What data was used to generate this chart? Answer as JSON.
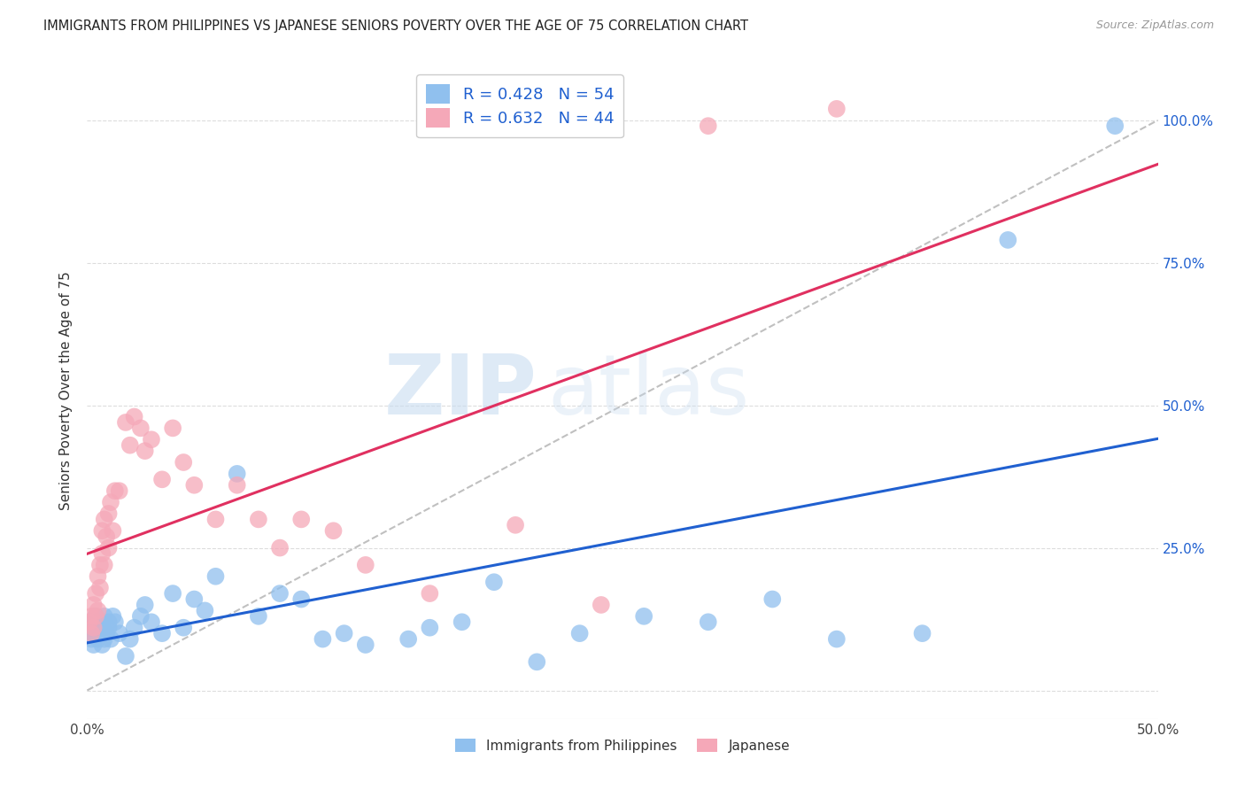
{
  "title": "IMMIGRANTS FROM PHILIPPINES VS JAPANESE SENIORS POVERTY OVER THE AGE OF 75 CORRELATION CHART",
  "source": "Source: ZipAtlas.com",
  "ylabel": "Seniors Poverty Over the Age of 75",
  "xlim": [
    0.0,
    0.5
  ],
  "ylim": [
    -0.05,
    1.1
  ],
  "xticks": [
    0.0,
    0.1,
    0.2,
    0.3,
    0.4,
    0.5
  ],
  "xticklabels": [
    "0.0%",
    "",
    "",
    "",
    "",
    "50.0%"
  ],
  "yticks_right": [
    0.25,
    0.5,
    0.75,
    1.0
  ],
  "yticklabels_right": [
    "25.0%",
    "50.0%",
    "75.0%",
    "100.0%"
  ],
  "blue_R": 0.428,
  "blue_N": 54,
  "pink_R": 0.632,
  "pink_N": 44,
  "blue_color": "#90C0EE",
  "pink_color": "#F5A8B8",
  "blue_line_color": "#2060D0",
  "pink_line_color": "#E03060",
  "dashed_line_color": "#C0C0C0",
  "blue_x": [
    0.001,
    0.002,
    0.002,
    0.003,
    0.003,
    0.004,
    0.004,
    0.005,
    0.005,
    0.006,
    0.006,
    0.007,
    0.007,
    0.008,
    0.008,
    0.009,
    0.01,
    0.01,
    0.011,
    0.012,
    0.013,
    0.015,
    0.018,
    0.02,
    0.022,
    0.025,
    0.027,
    0.03,
    0.035,
    0.04,
    0.045,
    0.05,
    0.055,
    0.06,
    0.07,
    0.08,
    0.09,
    0.1,
    0.11,
    0.12,
    0.13,
    0.15,
    0.16,
    0.175,
    0.19,
    0.21,
    0.23,
    0.26,
    0.29,
    0.32,
    0.35,
    0.39,
    0.43,
    0.48
  ],
  "blue_y": [
    0.1,
    0.09,
    0.11,
    0.08,
    0.12,
    0.1,
    0.13,
    0.09,
    0.11,
    0.1,
    0.12,
    0.08,
    0.11,
    0.09,
    0.13,
    0.1,
    0.12,
    0.11,
    0.09,
    0.13,
    0.12,
    0.1,
    0.06,
    0.09,
    0.11,
    0.13,
    0.15,
    0.12,
    0.1,
    0.17,
    0.11,
    0.16,
    0.14,
    0.2,
    0.38,
    0.13,
    0.17,
    0.16,
    0.09,
    0.1,
    0.08,
    0.09,
    0.11,
    0.12,
    0.19,
    0.05,
    0.1,
    0.13,
    0.12,
    0.16,
    0.09,
    0.1,
    0.79,
    0.99
  ],
  "pink_x": [
    0.001,
    0.002,
    0.002,
    0.003,
    0.003,
    0.004,
    0.004,
    0.005,
    0.005,
    0.006,
    0.006,
    0.007,
    0.007,
    0.008,
    0.008,
    0.009,
    0.01,
    0.01,
    0.011,
    0.012,
    0.013,
    0.015,
    0.018,
    0.02,
    0.022,
    0.025,
    0.027,
    0.03,
    0.035,
    0.04,
    0.045,
    0.05,
    0.06,
    0.07,
    0.08,
    0.09,
    0.1,
    0.115,
    0.13,
    0.16,
    0.2,
    0.24,
    0.29,
    0.35
  ],
  "pink_y": [
    0.12,
    0.1,
    0.13,
    0.11,
    0.15,
    0.13,
    0.17,
    0.14,
    0.2,
    0.18,
    0.22,
    0.24,
    0.28,
    0.22,
    0.3,
    0.27,
    0.31,
    0.25,
    0.33,
    0.28,
    0.35,
    0.35,
    0.47,
    0.43,
    0.48,
    0.46,
    0.42,
    0.44,
    0.37,
    0.46,
    0.4,
    0.36,
    0.3,
    0.36,
    0.3,
    0.25,
    0.3,
    0.28,
    0.22,
    0.17,
    0.29,
    0.15,
    0.99,
    1.02
  ],
  "legend_labels": [
    "Immigrants from Philippines",
    "Japanese"
  ],
  "watermark_zip": "ZIP",
  "watermark_atlas": "atlas",
  "background_color": "#FFFFFF",
  "grid_color": "#DDDDDD"
}
